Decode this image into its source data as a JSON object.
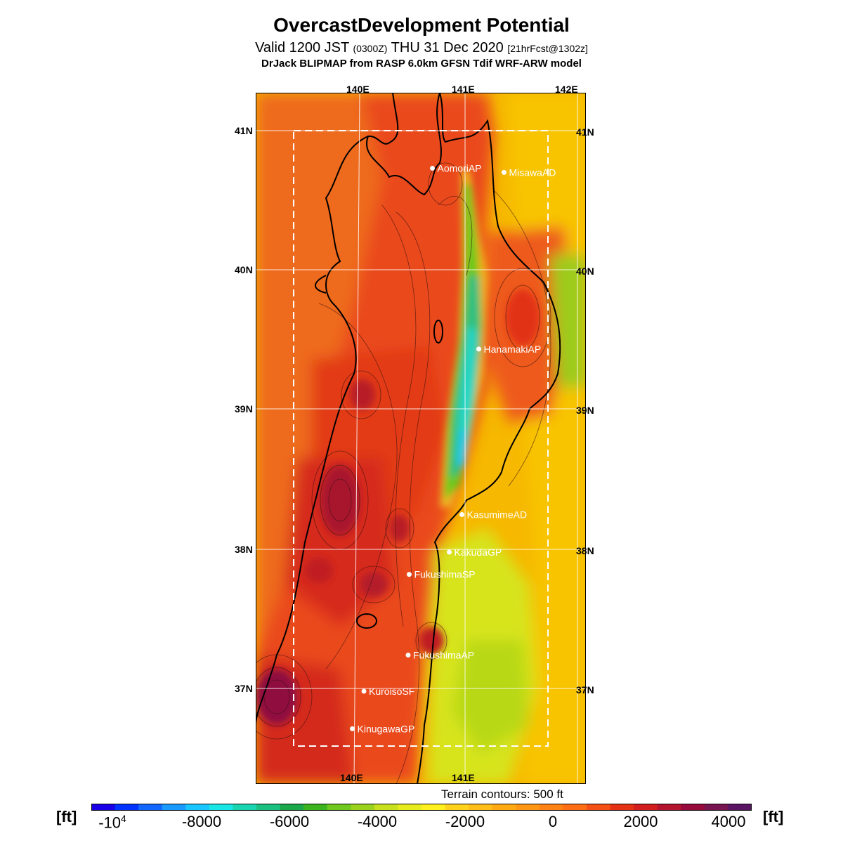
{
  "header": {
    "title": "OvercastDevelopment Potential",
    "subtitle_main": "Valid 1200 JST",
    "subtitle_z": "(0300Z)",
    "subtitle_date": "THU 31 Dec 2020",
    "subtitle_fcst": "[21hrFcst@1302z]",
    "subtitle2": "DrJack BLIPMAP from RASP 6.0km GFSN Tdif WRF-ARW model"
  },
  "map": {
    "lon_labels_top": [
      "140E",
      "141E",
      "142E"
    ],
    "lon_labels_bottom": [
      "140E",
      "141E"
    ],
    "lat_labels_left": [
      "41N",
      "40N",
      "39N",
      "38N",
      "37N"
    ],
    "lat_labels_right": [
      "41N",
      "40N",
      "39N",
      "38N",
      "37N"
    ],
    "stations": [
      {
        "name": "AomoriAP",
        "lon": 140.69,
        "lat": 40.73
      },
      {
        "name": "MisawaAD",
        "lon": 141.37,
        "lat": 40.7
      },
      {
        "name": "HanamakiAP",
        "lon": 141.13,
        "lat": 39.43
      },
      {
        "name": "KasumimeAD",
        "lon": 140.97,
        "lat": 38.24
      },
      {
        "name": "KakudaGP",
        "lon": 140.85,
        "lat": 37.97
      },
      {
        "name": "FukushimaSP",
        "lon": 140.47,
        "lat": 37.81
      },
      {
        "name": "FukushimaAP",
        "lon": 140.46,
        "lat": 37.23
      },
      {
        "name": "KuroisoSF",
        "lon": 140.04,
        "lat": 36.97
      },
      {
        "name": "KinugawaGP",
        "lon": 139.93,
        "lat": 36.7
      }
    ],
    "colors": {
      "sea_east": "#f5b400",
      "land_west": "#e8401a",
      "mountain": "#b51a2a",
      "valley_green": "#2fb82e",
      "valley_cyan": "#25d6c8",
      "coast_yellow": "#dceb10"
    }
  },
  "terrain_note": "Terrain contours: 500 ft",
  "colorbar": {
    "unit": "[ft]",
    "labels": [
      {
        "text": "-10",
        "sup": "4"
      },
      {
        "text": "-8000",
        "sup": ""
      },
      {
        "text": "-6000",
        "sup": ""
      },
      {
        "text": "-4000",
        "sup": ""
      },
      {
        "text": "-2000",
        "sup": ""
      },
      {
        "text": "0",
        "sup": ""
      },
      {
        "text": "2000",
        "sup": ""
      },
      {
        "text": "4000",
        "sup": ""
      }
    ],
    "colors": [
      "#1a00e6",
      "#0033ff",
      "#1166ff",
      "#1a99ff",
      "#1ac6ff",
      "#1ae6e6",
      "#1ad6b0",
      "#1ac080",
      "#1aa84a",
      "#3cb41e",
      "#6ec81e",
      "#9ad21e",
      "#c8e01e",
      "#e6ec1e",
      "#fff01e",
      "#ffd21e",
      "#ffbe1a",
      "#ffaa14",
      "#ff9614",
      "#ff8214",
      "#ff6e14",
      "#f55014",
      "#e63214",
      "#d21e1e",
      "#b4142d",
      "#960a3c",
      "#781450",
      "#5a1464"
    ]
  }
}
